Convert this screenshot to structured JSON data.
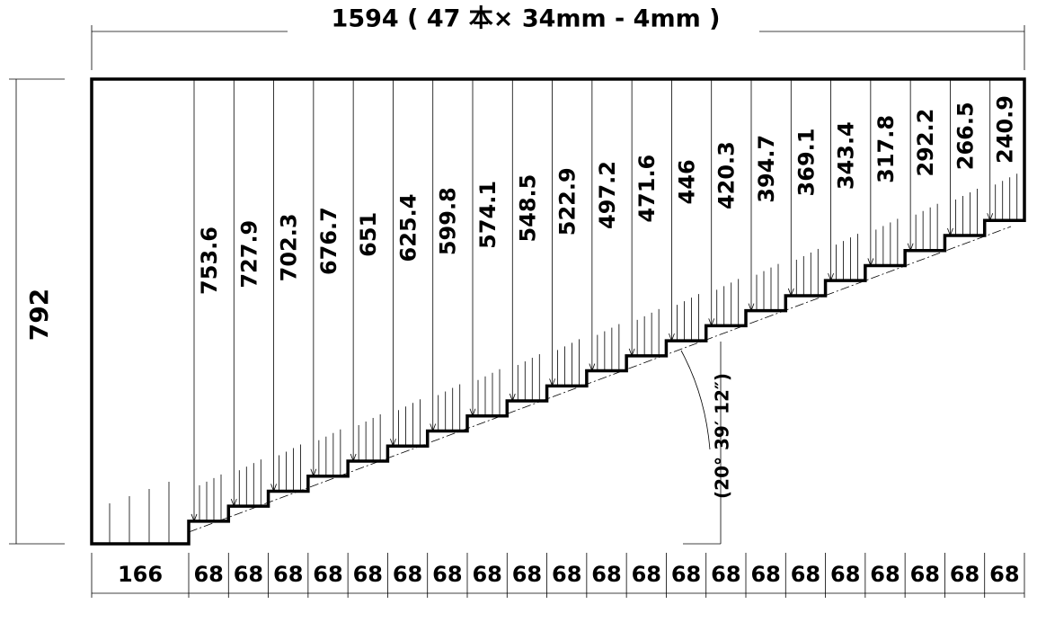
{
  "top_dimension": "1594 ( 47 本× 34mm - 4mm )",
  "height_dimension": "792",
  "angle_label": "(20° 39′ 12″)",
  "step_heights": [
    "753.6",
    "727.9",
    "702.3",
    "676.7",
    "651",
    "625.4",
    "599.8",
    "574.1",
    "548.5",
    "522.9",
    "497.2",
    "471.6",
    "446",
    "420.3",
    "394.7",
    "369.1",
    "343.4",
    "317.8",
    "292.2",
    "266.5",
    "240.9"
  ],
  "bottom_widths": [
    "166",
    "68",
    "68",
    "68",
    "68",
    "68",
    "68",
    "68",
    "68",
    "68",
    "68",
    "68",
    "68",
    "68",
    "68",
    "68",
    "68",
    "68",
    "68",
    "68",
    "68",
    "68"
  ]
}
